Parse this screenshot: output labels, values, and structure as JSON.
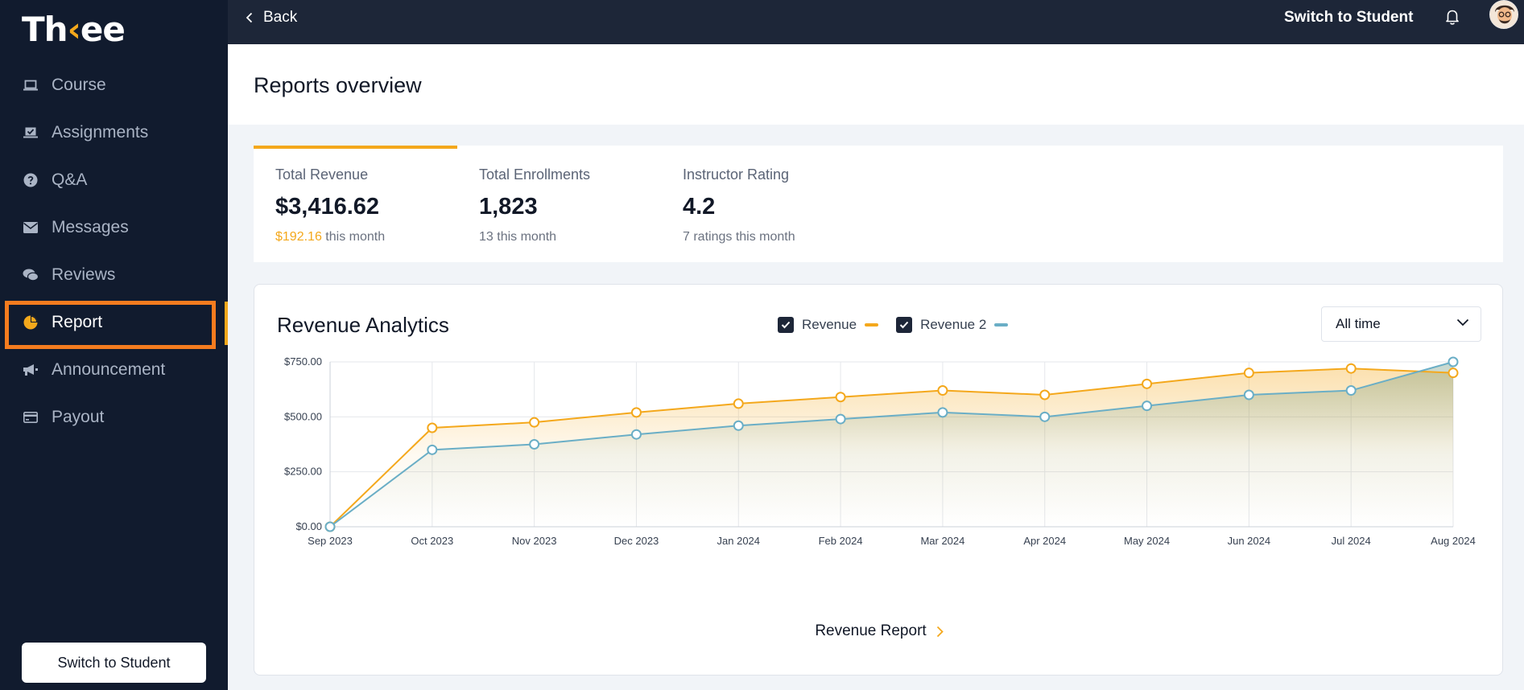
{
  "app": {
    "logo_pre": "Th",
    "logo_k": "‹",
    "logo_post": "ee"
  },
  "sidebar": {
    "items": [
      {
        "label": "Course",
        "icon": "laptop-icon"
      },
      {
        "label": "Assignments",
        "icon": "assignment-icon"
      },
      {
        "label": "Q&A",
        "icon": "question-icon"
      },
      {
        "label": "Messages",
        "icon": "envelope-icon"
      },
      {
        "label": "Reviews",
        "icon": "comments-icon"
      },
      {
        "label": "Report",
        "icon": "pie-chart-icon",
        "active": true
      },
      {
        "label": "Announcement",
        "icon": "megaphone-icon"
      },
      {
        "label": "Payout",
        "icon": "credit-card-icon"
      }
    ],
    "switch_label": "Switch to Student"
  },
  "topbar": {
    "back_label": "Back",
    "switch_label": "Switch to Student"
  },
  "header": {
    "title": "Reports overview"
  },
  "stats": [
    {
      "label": "Total Revenue",
      "value": "$3,416.62",
      "sub_highlight": "$192.16",
      "sub": " this month"
    },
    {
      "label": "Total Enrollments",
      "value": "1,823",
      "sub_highlight": "",
      "sub": "13 this month"
    },
    {
      "label": "Instructor Rating",
      "value": "4.2",
      "sub_highlight": "",
      "sub": "7 ratings this month"
    }
  ],
  "analytics": {
    "title": "Revenue Analytics",
    "legend": [
      "Revenue",
      "Revenue 2"
    ],
    "range_select": "All time",
    "report_link": "Revenue Report"
  },
  "colors": {
    "accent": "#f4a81c",
    "series2": "#6aaec6",
    "sidebar_bg": "#111b2e",
    "highlight_box": "#f57c1f"
  },
  "chart_data": {
    "type": "area",
    "x": [
      "Sep 2023",
      "Oct 2023",
      "Nov 2023",
      "Dec 2023",
      "Jan 2024",
      "Feb 2024",
      "Mar 2024",
      "Apr 2024",
      "May 2024",
      "Jun 2024",
      "Jul 2024",
      "Aug 2024"
    ],
    "series": [
      {
        "name": "Revenue",
        "values": [
          0,
          450,
          475,
          520,
          560,
          590,
          620,
          600,
          650,
          700,
          720,
          700
        ]
      },
      {
        "name": "Revenue 2",
        "values": [
          0,
          350,
          375,
          420,
          460,
          490,
          520,
          500,
          550,
          600,
          620,
          750
        ]
      }
    ],
    "yticks": [
      "$0.00",
      "$250.00",
      "$500.00",
      "$750.00"
    ],
    "ylim": [
      0,
      750
    ],
    "grid": true,
    "legend_position": "top-center"
  }
}
